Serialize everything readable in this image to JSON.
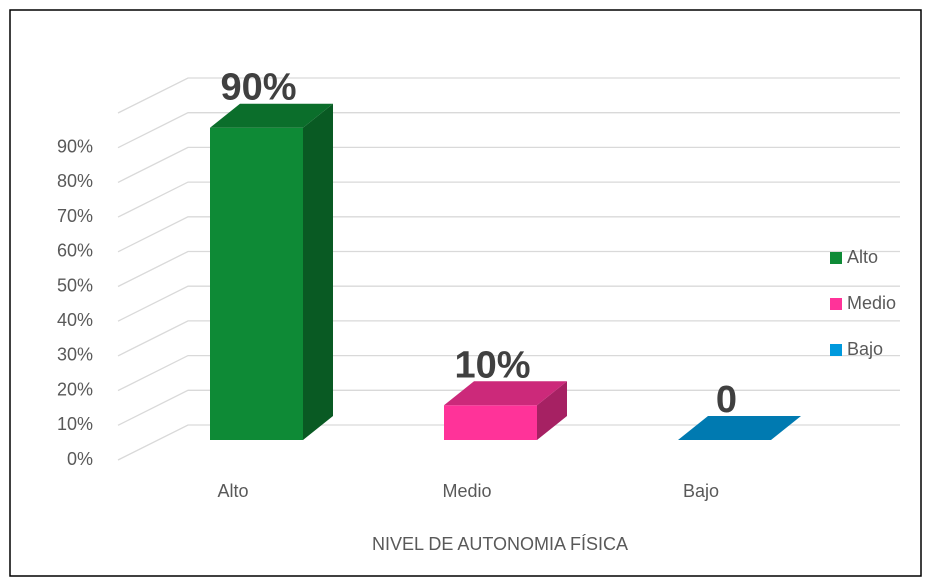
{
  "chart_data": {
    "type": "bar3d",
    "x_label": "NIVEL DE AUTONOMIA FÍSICA",
    "categories": [
      "Alto",
      "Medio",
      "Bajo"
    ],
    "values": [
      90,
      10,
      0
    ],
    "value_labels": [
      "90%",
      "10%",
      "0"
    ],
    "colors": [
      "#0e8a36",
      "#ff3399",
      "#0099dd"
    ],
    "ylim": [
      0,
      100
    ],
    "yticks": [
      {
        "value": 0,
        "label": "0%"
      },
      {
        "value": 10,
        "label": "10%"
      },
      {
        "value": 20,
        "label": "20%"
      },
      {
        "value": 30,
        "label": "30%"
      },
      {
        "value": 40,
        "label": "40%"
      },
      {
        "value": 50,
        "label": "50%"
      },
      {
        "value": 60,
        "label": "60%"
      },
      {
        "value": 70,
        "label": "70%"
      },
      {
        "value": 80,
        "label": "80%"
      },
      {
        "value": 90,
        "label": "90%"
      }
    ],
    "grid": true,
    "legend": "right"
  }
}
